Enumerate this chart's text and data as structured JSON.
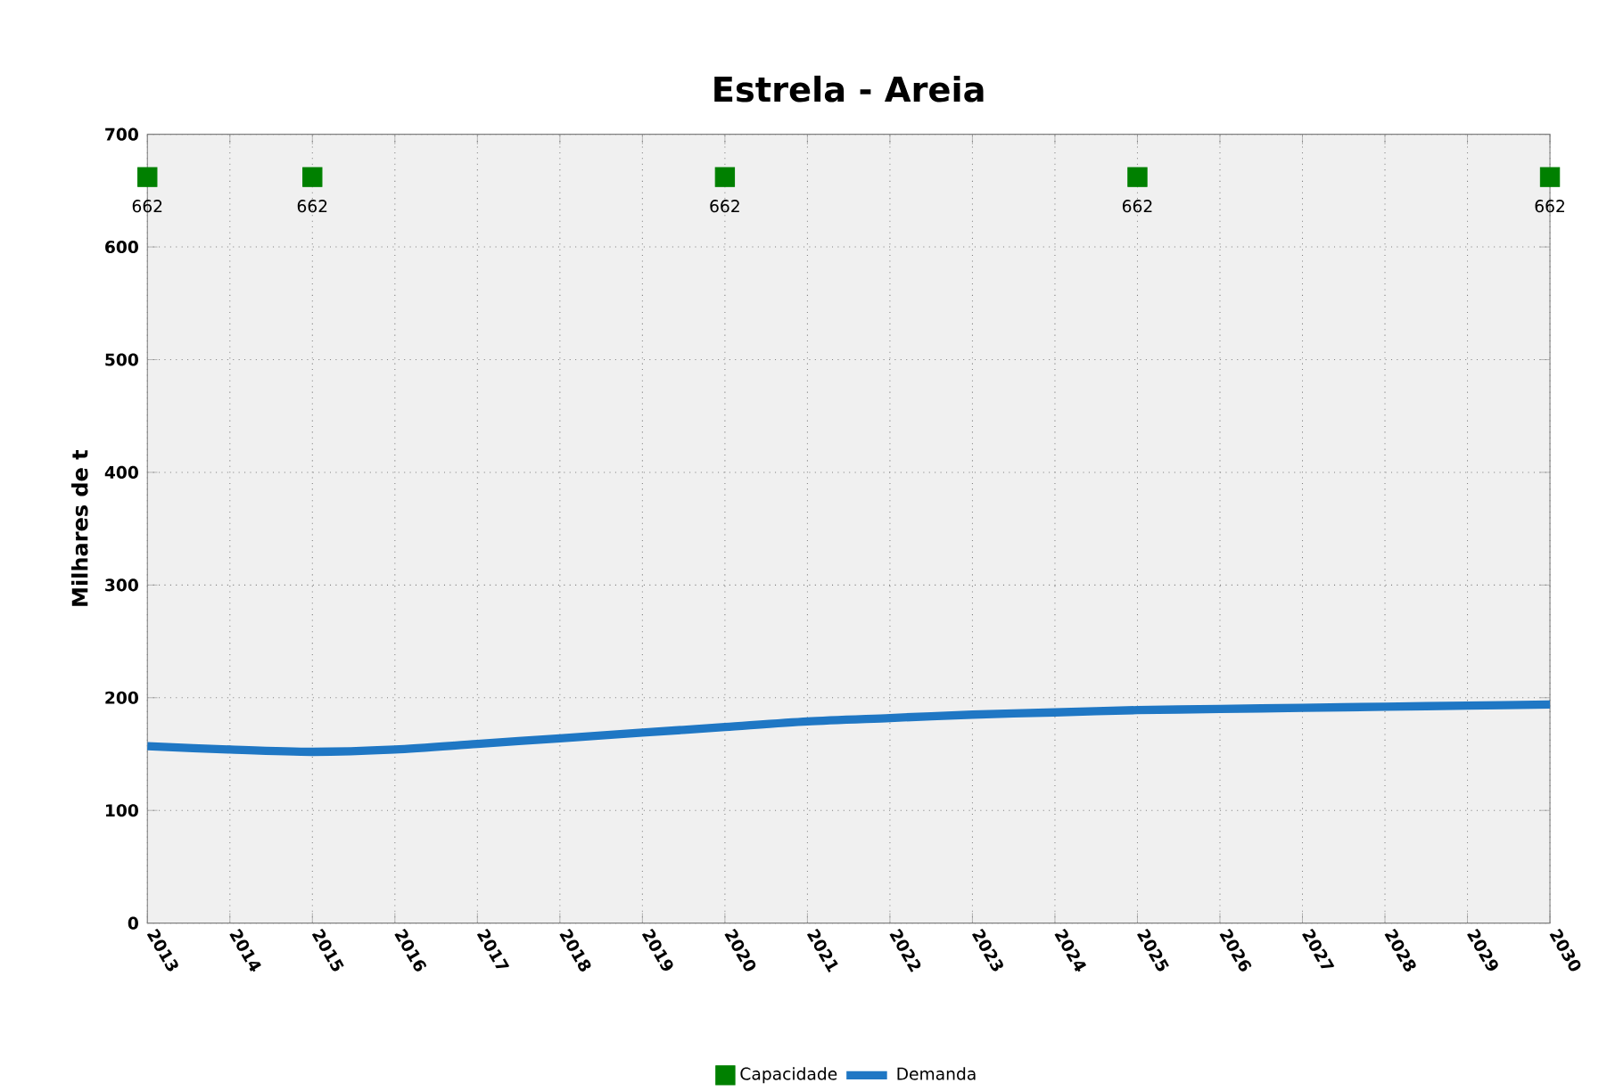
{
  "chart_data": {
    "type": "line",
    "title": "Estrela - Areia",
    "ylabel": "Milhares de t",
    "xlim": [
      2013,
      2030
    ],
    "xticks": [
      2013,
      2014,
      2015,
      2016,
      2017,
      2018,
      2019,
      2020,
      2021,
      2022,
      2023,
      2024,
      2025,
      2026,
      2027,
      2028,
      2029,
      2030
    ],
    "ylim": [
      0,
      700
    ],
    "yticks": [
      0,
      100,
      200,
      300,
      400,
      500,
      600,
      700
    ],
    "grid": true,
    "legend": "bottom",
    "series": [
      {
        "name": "Capacidade",
        "type": "scatter",
        "marker": "square",
        "color": "#008000",
        "x": [
          2013,
          2015,
          2020,
          2025,
          2030
        ],
        "values": [
          662,
          662,
          662,
          662,
          662
        ],
        "value_labels": [
          "662",
          "662",
          "662",
          "662",
          "662"
        ]
      },
      {
        "name": "Demanda",
        "marker": "none",
        "line_style": "solid",
        "color": "#1f77c4",
        "x": [
          2013,
          2014,
          2015,
          2016,
          2017,
          2018,
          2019,
          2020,
          2021,
          2022,
          2023,
          2024,
          2025,
          2026,
          2027,
          2028,
          2029,
          2030
        ],
        "values": [
          157,
          154,
          152,
          154,
          159,
          164,
          169,
          174,
          179,
          182,
          185,
          187,
          189,
          190,
          191,
          192,
          193,
          194
        ]
      }
    ]
  }
}
